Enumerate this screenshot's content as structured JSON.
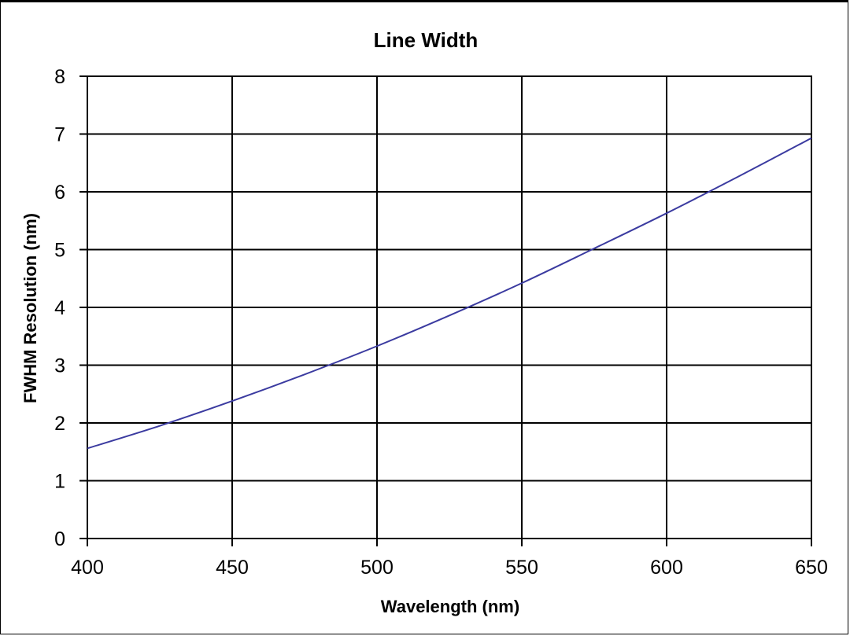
{
  "chart_data": {
    "type": "line",
    "title": "Line Width",
    "xlabel": "Wavelength (nm)",
    "ylabel": "FWHM Resolution (nm)",
    "xlim": [
      400,
      650
    ],
    "ylim": [
      0,
      8
    ],
    "xticks": [
      400,
      450,
      500,
      550,
      600,
      650
    ],
    "yticks": [
      0,
      1,
      2,
      3,
      4,
      5,
      6,
      7,
      8
    ],
    "grid": true,
    "legend": "none",
    "series": [
      {
        "color": "#3b3ba0",
        "x": [
          400,
          425,
          450,
          475,
          500,
          525,
          550,
          575,
          600,
          625,
          650
        ],
        "y": [
          1.56,
          1.95,
          2.38,
          2.84,
          3.33,
          3.86,
          4.42,
          5.02,
          5.63,
          6.27,
          6.93
        ]
      }
    ]
  }
}
